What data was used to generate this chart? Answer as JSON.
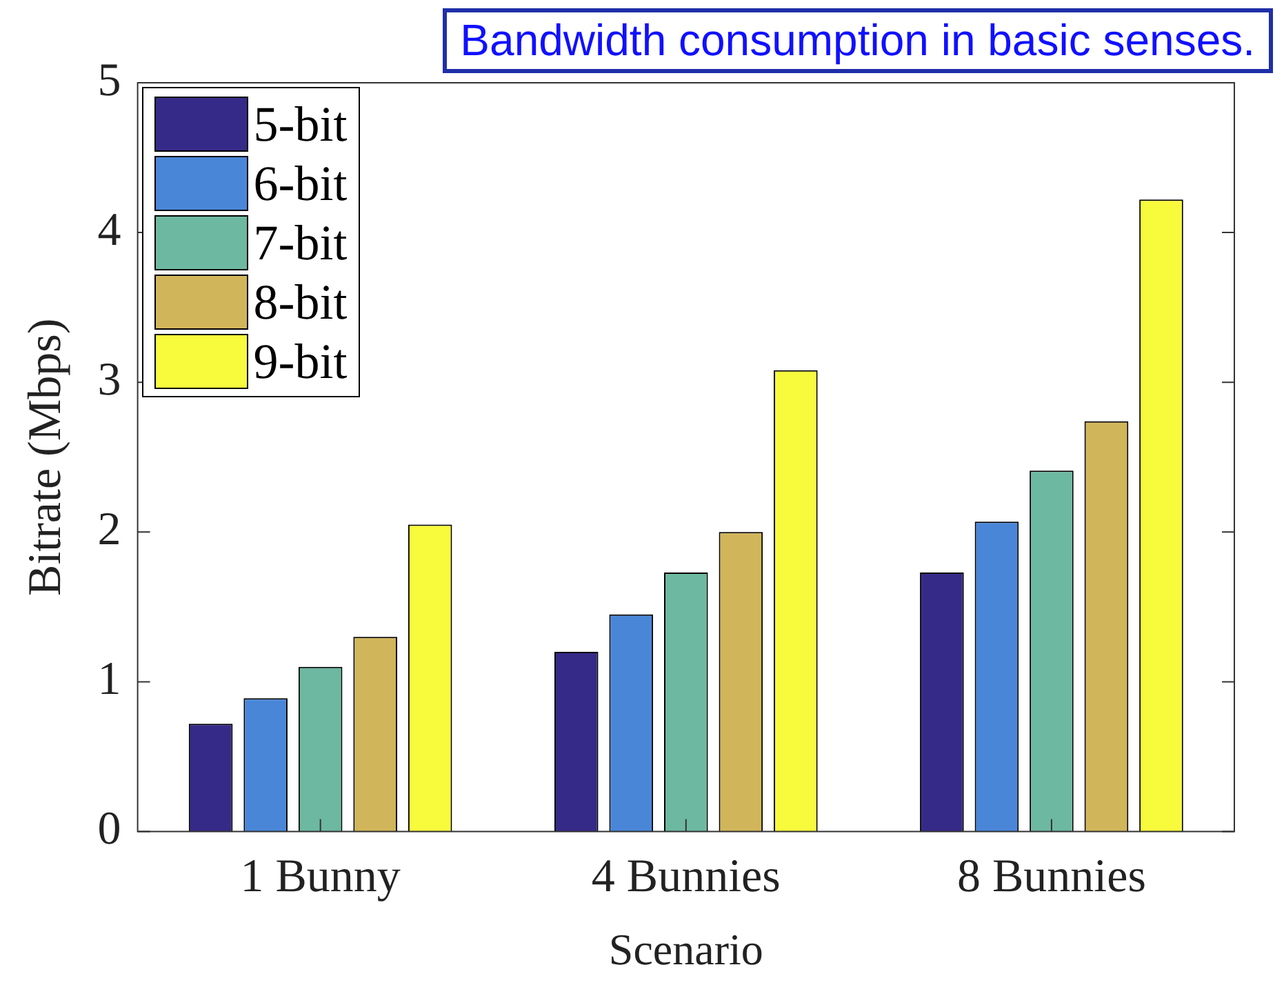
{
  "chart_data": {
    "type": "bar",
    "title": "Bandwidth consumption in basic senses.",
    "xlabel": "Scenario",
    "ylabel": "Bitrate (Mbps)",
    "categories": [
      "1 Bunny",
      "4 Bunnies",
      "8 Bunnies"
    ],
    "series": [
      {
        "name": "5-bit",
        "color": "#352a87",
        "values": [
          0.72,
          1.2,
          1.73
        ]
      },
      {
        "name": "6-bit",
        "color": "#4a86d8",
        "values": [
          0.89,
          1.45,
          2.07
        ]
      },
      {
        "name": "7-bit",
        "color": "#6db8a0",
        "values": [
          1.1,
          1.73,
          2.41
        ]
      },
      {
        "name": "8-bit",
        "color": "#d1b55a",
        "values": [
          1.3,
          2.0,
          2.74
        ]
      },
      {
        "name": "9-bit",
        "color": "#f8fa3c",
        "values": [
          2.05,
          3.08,
          4.22
        ]
      }
    ],
    "ylim": [
      0,
      5
    ],
    "yticks": [
      0,
      1,
      2,
      3,
      4,
      5
    ],
    "grid": false,
    "legend": "top left"
  }
}
